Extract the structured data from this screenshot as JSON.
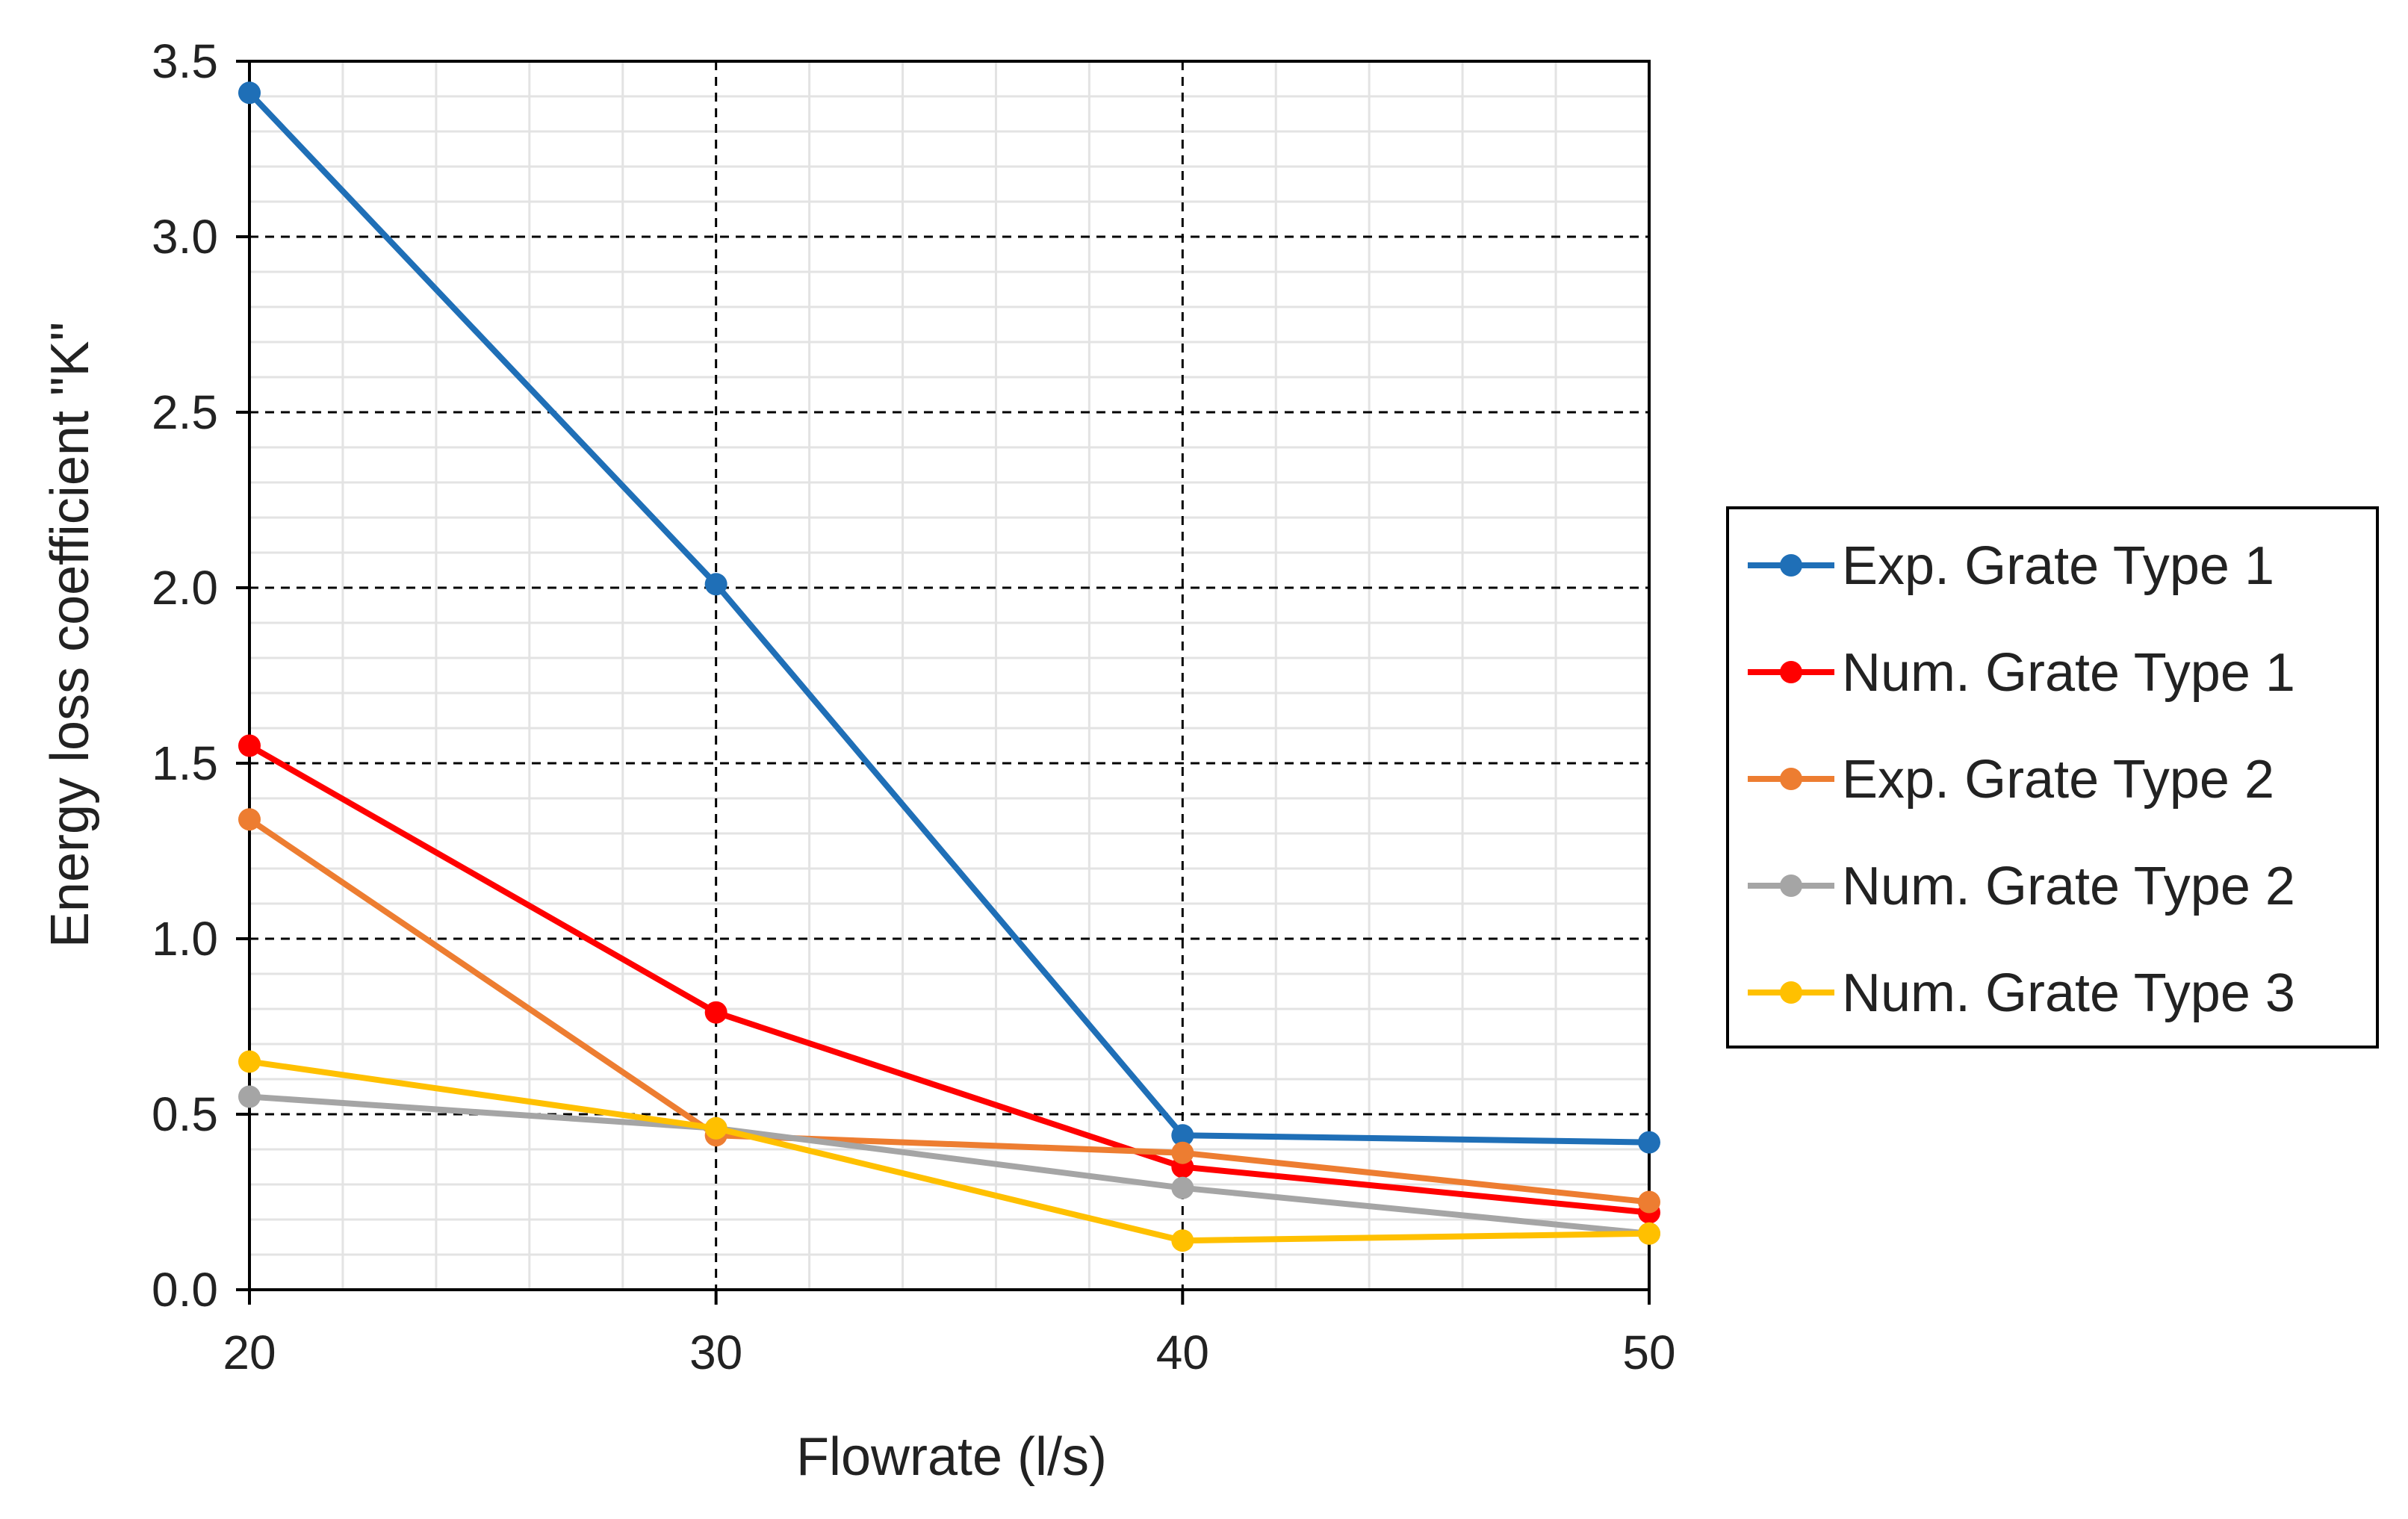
{
  "chart_data": {
    "type": "line",
    "title": "",
    "xlabel": "Flowrate (l/s)",
    "ylabel": "Energy loss coefficient \"K\"",
    "x": [
      20,
      30,
      40,
      50
    ],
    "xlim": [
      20,
      50
    ],
    "ylim": [
      0,
      3.5
    ],
    "x_ticks": [
      "20",
      "30",
      "40",
      "50"
    ],
    "y_ticks": [
      "0.0",
      "0.5",
      "1.0",
      "1.5",
      "2.0",
      "2.5",
      "3.0",
      "3.5"
    ],
    "grid": true,
    "legend_position": "right",
    "series": [
      {
        "name": "Exp. Grate Type 1",
        "color": "#1f6fb7",
        "values": [
          3.41,
          2.01,
          0.44,
          0.42
        ]
      },
      {
        "name": "Num. Grate Type 1",
        "color": "#ff0000",
        "values": [
          1.55,
          0.79,
          0.35,
          0.22
        ]
      },
      {
        "name": "Exp. Grate Type 2",
        "color": "#ed7d31",
        "values": [
          1.34,
          0.44,
          0.39,
          0.25
        ]
      },
      {
        "name": "Num. Grate Type 2",
        "color": "#a5a5a5",
        "values": [
          0.55,
          0.46,
          0.29,
          0.16
        ]
      },
      {
        "name": "Num. Grate Type 3",
        "color": "#ffc000",
        "values": [
          0.65,
          0.46,
          0.14,
          0.16
        ]
      }
    ]
  }
}
